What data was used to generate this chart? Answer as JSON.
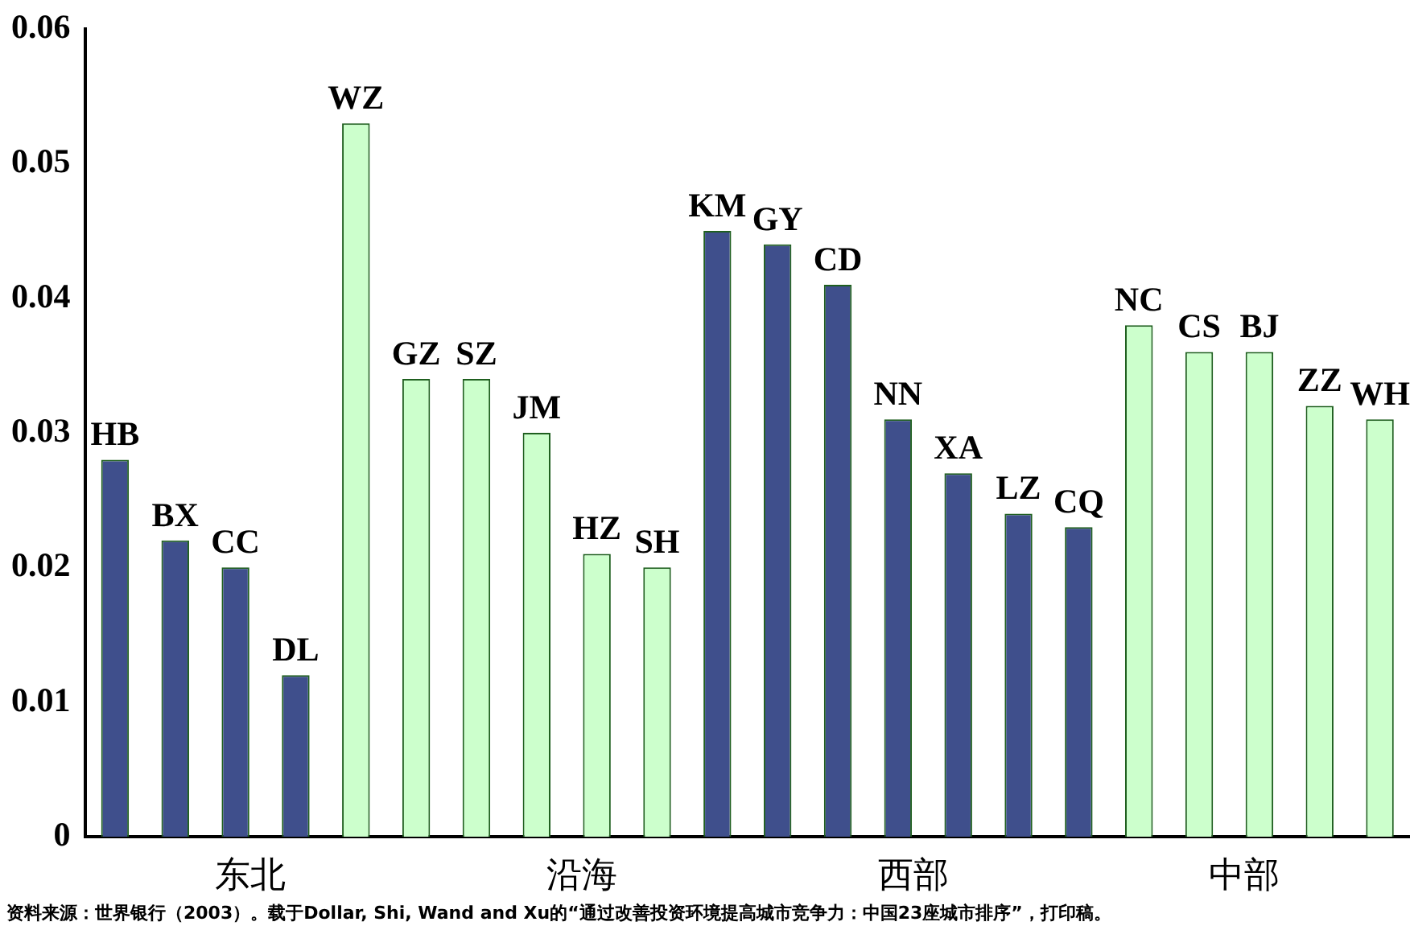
{
  "chart_data": {
    "type": "bar",
    "categories": [
      "HB",
      "BX",
      "CC",
      "DL",
      "WZ",
      "GZ",
      "SZ",
      "JM",
      "HZ",
      "SH",
      "KM",
      "GY",
      "CD",
      "NN",
      "XA",
      "LZ",
      "CQ",
      "NC",
      "CS",
      "BJ",
      "ZZ",
      "WH"
    ],
    "values": [
      0.028,
      0.022,
      0.02,
      0.012,
      0.053,
      0.034,
      0.034,
      0.03,
      0.021,
      0.02,
      0.045,
      0.044,
      0.041,
      0.031,
      0.027,
      0.024,
      0.023,
      0.038,
      0.036,
      0.036,
      0.032,
      0.031
    ],
    "colors": [
      "#3f4f8c",
      "#3f4f8c",
      "#3f4f8c",
      "#3f4f8c",
      "#ccffcc",
      "#ccffcc",
      "#ccffcc",
      "#ccffcc",
      "#ccffcc",
      "#ccffcc",
      "#3f4f8c",
      "#3f4f8c",
      "#3f4f8c",
      "#3f4f8c",
      "#3f4f8c",
      "#3f4f8c",
      "#3f4f8c",
      "#ccffcc",
      "#ccffcc",
      "#ccffcc",
      "#ccffcc",
      "#ccffcc"
    ],
    "ylim": [
      0,
      0.06
    ],
    "yticks": [
      0,
      0.01,
      0.02,
      0.03,
      0.04,
      0.05,
      0.06
    ],
    "grid": false,
    "legend": false,
    "annotations": [
      "东北",
      "沿海",
      "西部",
      "中部",
      "资料来源：世界银行（2003）。载于Dollar, Shi, Wand and Xu的“通过改善投资环境提高城市竞争力：中国23座城市排序”，打印稿。"
    ]
  }
}
